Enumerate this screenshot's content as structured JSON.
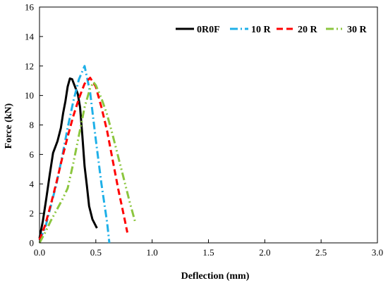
{
  "chart_data": {
    "type": "line",
    "title": "",
    "xlabel": "Deflection (mm)",
    "ylabel": "Force (kN)",
    "xlim": [
      0,
      3.0
    ],
    "ylim": [
      0,
      16
    ],
    "x_ticks": [
      "0.0",
      "0.5",
      "1.0",
      "1.5",
      "2.0",
      "2.5",
      "3.0"
    ],
    "y_ticks": [
      "0",
      "2",
      "4",
      "6",
      "8",
      "10",
      "12",
      "14",
      "16"
    ],
    "grid": false,
    "legend_position": "top-right",
    "series": [
      {
        "name": "0R0F",
        "color": "#000000",
        "dash": "solid",
        "points": [
          [
            0.0,
            0.3
          ],
          [
            0.03,
            1.5
          ],
          [
            0.06,
            3.0
          ],
          [
            0.09,
            4.6
          ],
          [
            0.12,
            6.1
          ],
          [
            0.16,
            6.9
          ],
          [
            0.19,
            7.8
          ],
          [
            0.21,
            8.8
          ],
          [
            0.23,
            9.6
          ],
          [
            0.25,
            10.6
          ],
          [
            0.27,
            11.15
          ],
          [
            0.29,
            11.1
          ],
          [
            0.31,
            10.7
          ],
          [
            0.34,
            10.1
          ],
          [
            0.36,
            9.2
          ],
          [
            0.38,
            7.3
          ],
          [
            0.4,
            5.2
          ],
          [
            0.42,
            3.9
          ],
          [
            0.44,
            2.5
          ],
          [
            0.47,
            1.6
          ],
          [
            0.51,
            1.0
          ]
        ]
      },
      {
        "name": "10 R",
        "color": "#1fb0e8",
        "dash": "dash-dot",
        "points": [
          [
            0.0,
            0.2
          ],
          [
            0.05,
            1.0
          ],
          [
            0.1,
            2.5
          ],
          [
            0.15,
            4.0
          ],
          [
            0.2,
            5.8
          ],
          [
            0.25,
            7.8
          ],
          [
            0.3,
            9.6
          ],
          [
            0.35,
            11.1
          ],
          [
            0.4,
            12.0
          ],
          [
            0.45,
            10.2
          ],
          [
            0.5,
            7.0
          ],
          [
            0.55,
            4.0
          ],
          [
            0.6,
            1.4
          ],
          [
            0.62,
            0.0
          ]
        ]
      },
      {
        "name": "20 R",
        "color": "#ff0000",
        "dash": "dash",
        "points": [
          [
            0.0,
            0.2
          ],
          [
            0.05,
            1.2
          ],
          [
            0.1,
            2.6
          ],
          [
            0.15,
            4.1
          ],
          [
            0.2,
            5.7
          ],
          [
            0.25,
            7.2
          ],
          [
            0.3,
            8.6
          ],
          [
            0.35,
            9.8
          ],
          [
            0.4,
            10.8
          ],
          [
            0.45,
            11.2
          ],
          [
            0.5,
            10.6
          ],
          [
            0.55,
            9.2
          ],
          [
            0.6,
            7.6
          ],
          [
            0.65,
            5.6
          ],
          [
            0.7,
            3.6
          ],
          [
            0.75,
            1.8
          ],
          [
            0.78,
            0.7
          ]
        ]
      },
      {
        "name": "30 R",
        "color": "#8cc63f",
        "dash": "dash-dot-dot",
        "points": [
          [
            0.0,
            0.0
          ],
          [
            0.05,
            0.7
          ],
          [
            0.1,
            1.5
          ],
          [
            0.15,
            2.2
          ],
          [
            0.2,
            2.9
          ],
          [
            0.25,
            3.7
          ],
          [
            0.3,
            5.4
          ],
          [
            0.35,
            7.3
          ],
          [
            0.4,
            9.2
          ],
          [
            0.45,
            10.5
          ],
          [
            0.48,
            10.9
          ],
          [
            0.5,
            10.7
          ],
          [
            0.55,
            9.8
          ],
          [
            0.6,
            8.7
          ],
          [
            0.65,
            7.3
          ],
          [
            0.7,
            5.8
          ],
          [
            0.75,
            4.3
          ],
          [
            0.8,
            2.8
          ],
          [
            0.85,
            1.4
          ]
        ]
      }
    ]
  }
}
